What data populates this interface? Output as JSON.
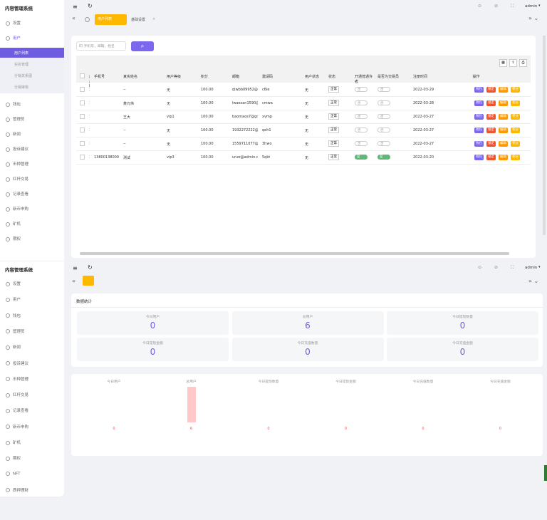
{
  "top": {
    "app_title": "内容管理系统",
    "user": "admin",
    "menu": [
      "设置",
      "用户",
      "钱包",
      "管理员",
      "新闻",
      "投诉建议",
      "币种管理",
      "红杆交易",
      "记录查看",
      "新币申购",
      "矿机",
      "期权"
    ],
    "submenu": [
      "用户列表",
      "实名管理",
      "分销关系图",
      "分销审核"
    ],
    "tabs": [
      "用户列表",
      "基础设置"
    ],
    "search_placeholder": "ID,手机号，邮箱，姓名",
    "columns": [
      "用户ID",
      "手机号",
      "真实姓名",
      "用户等级",
      "积分",
      "邮箱",
      "邀请码",
      "用户状态",
      "状态",
      "开通普通许者",
      "是否为交易员",
      "注册时间",
      "操作"
    ],
    "rows": [
      [
        "1085731",
        "",
        "--",
        "无",
        "100.00",
        "qlwbb09952@ch...",
        "c6ie",
        "无",
        "正常",
        "否",
        "否",
        "2022-03-29"
      ],
      [
        "1085730",
        "",
        "黄元伟",
        "无",
        "100.00",
        "lwaesan1590@gm...",
        "cmwa",
        "无",
        "正常",
        "否",
        "否",
        "2022-03-28"
      ],
      [
        "1085729",
        "",
        "王大",
        "vip1",
        "100.00",
        "baomaos7@gmail...",
        "xvmp",
        "无",
        "正常",
        "否",
        "否",
        "2022-03-27"
      ],
      [
        "1085728",
        "",
        "--",
        "无",
        "100.00",
        "1932272222@qq...",
        "qeh1",
        "无",
        "正常",
        "否",
        "否",
        "2022-03-27"
      ],
      [
        "1085727",
        "",
        "--",
        "无",
        "100.00",
        "1559711077@qq...",
        "3hwo",
        "无",
        "正常",
        "否",
        "否",
        "2022-03-27"
      ],
      [
        "1085726",
        "13800138000",
        "测试",
        "vip3",
        "100.00",
        "unzz@admin.com",
        "5qkt",
        "无",
        "正常",
        "是",
        "是",
        "2022-03-20"
      ]
    ],
    "actions": [
      "钱包",
      "锁定",
      "编辑",
      "积分"
    ]
  },
  "bottom": {
    "app_title": "内容管理系统",
    "user": "admin",
    "menu": [
      "设置",
      "用户",
      "钱包",
      "管理员",
      "新闻",
      "投诉建议",
      "币种管理",
      "红杆交易",
      "记录查看",
      "新币申购",
      "矿机",
      "期权",
      "NFT",
      "质押理财"
    ],
    "section_title": "数据统计",
    "cards": [
      {
        "label": "今日用户",
        "value": 0
      },
      {
        "label": "总用户",
        "value": 6
      },
      {
        "label": "今日提现数量",
        "value": 0
      },
      {
        "label": "今日提现金额",
        "value": 0
      },
      {
        "label": "今日充值数量",
        "value": 0
      },
      {
        "label": "今日充值金额",
        "value": 0
      }
    ],
    "chart": {
      "type": "bar",
      "categories": [
        "今日用户",
        "总用户",
        "今日提现数量",
        "今日提现金额",
        "今日充值数量",
        "今日充值金额"
      ],
      "values": [
        0,
        6,
        0,
        0,
        0,
        0
      ],
      "ylim": [
        0,
        6
      ],
      "color": "#ffc9c9"
    }
  }
}
